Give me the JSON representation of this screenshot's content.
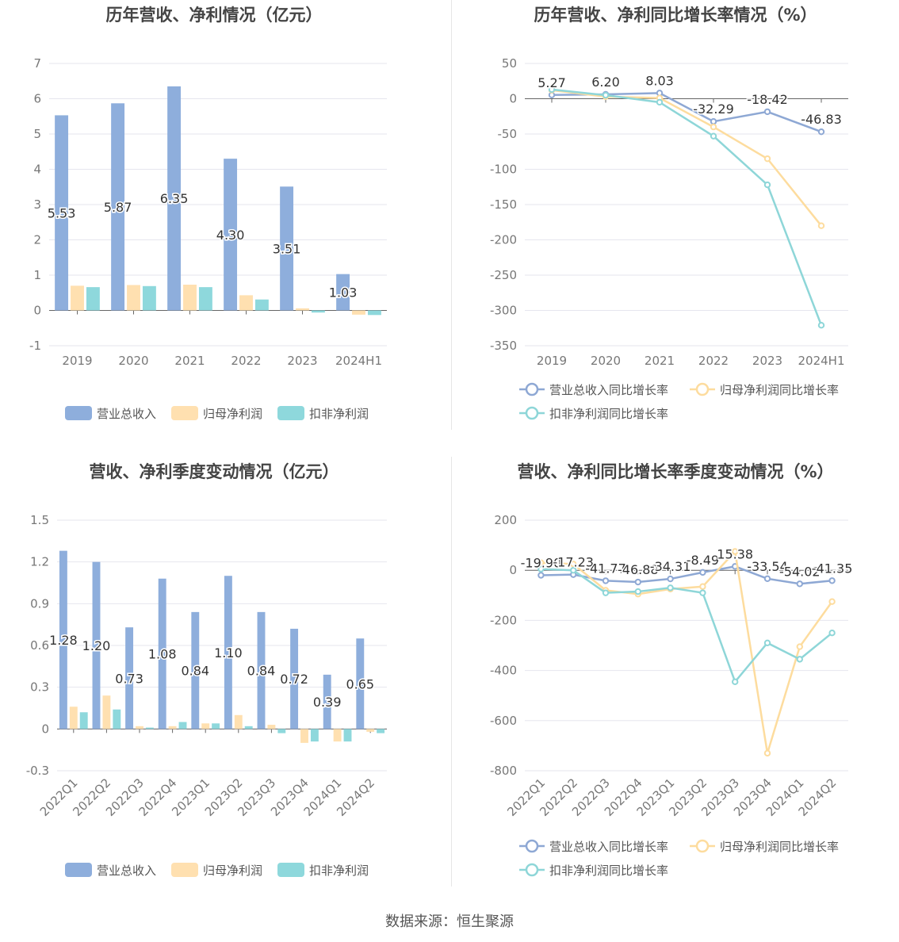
{
  "colors": {
    "revenue": "#8EAEDC",
    "net_profit": "#FFE0B0",
    "deducted_profit": "#8ED8DC",
    "revenue_line": "#8EA8D4",
    "net_line": "#FDDC9E",
    "deducted_line": "#8ED6D8",
    "grid": "#e6e6ee",
    "axis_text": "#777777",
    "title": "#444444"
  },
  "source": "数据来源：恒生聚源",
  "chart_data": [
    {
      "type": "bar",
      "title": "历年营收、净利情况（亿元）",
      "categories": [
        "2019",
        "2020",
        "2021",
        "2022",
        "2023",
        "2024H1"
      ],
      "ylim": [
        -1,
        7
      ],
      "yticks": [
        -1,
        0,
        1,
        2,
        3,
        4,
        5,
        6,
        7
      ],
      "ytick_labels": [
        "-1",
        "0",
        "1",
        "2",
        "3",
        "4",
        "5",
        "6",
        "7"
      ],
      "series": [
        {
          "name": "营业总收入",
          "values": [
            5.53,
            5.87,
            6.35,
            4.3,
            3.51,
            1.03
          ],
          "labels": [
            "5.53",
            "5.87",
            "6.35",
            "4.30",
            "3.51",
            "1.03"
          ]
        },
        {
          "name": "归母净利润",
          "values": [
            0.7,
            0.72,
            0.73,
            0.43,
            0.06,
            -0.12
          ]
        },
        {
          "name": "扣非净利润",
          "values": [
            0.66,
            0.69,
            0.66,
            0.31,
            -0.06,
            -0.13
          ]
        }
      ],
      "legend_position": "bottom"
    },
    {
      "type": "line",
      "title": "历年营收、净利同比增长率情况（%）",
      "categories": [
        "2019",
        "2020",
        "2021",
        "2022",
        "2023",
        "2024H1"
      ],
      "ylim": [
        -350,
        50
      ],
      "yticks": [
        -350,
        -300,
        -250,
        -200,
        -150,
        -100,
        -50,
        0,
        50
      ],
      "ytick_labels": [
        "-350",
        "-300",
        "-250",
        "-200",
        "-150",
        "-100",
        "-50",
        "0",
        "50"
      ],
      "series": [
        {
          "name": "营业总收入同比增长率",
          "values": [
            5.27,
            6.2,
            8.03,
            -32.29,
            -18.42,
            -46.83
          ],
          "labels": [
            "5.27",
            "6.20",
            "8.03",
            "-32.29",
            "-18.42",
            "-46.83"
          ]
        },
        {
          "name": "归母净利润同比增长率",
          "values": [
            12,
            3,
            1,
            -40,
            -85,
            -180
          ]
        },
        {
          "name": "扣非净利润同比增长率",
          "values": [
            13,
            5,
            -5,
            -53,
            -122,
            -321
          ]
        }
      ],
      "legend_position": "bottom"
    },
    {
      "type": "bar",
      "title": "营收、净利季度变动情况（亿元）",
      "categories": [
        "2022Q1",
        "2022Q2",
        "2022Q3",
        "2022Q4",
        "2023Q1",
        "2023Q2",
        "2023Q3",
        "2023Q4",
        "2024Q1",
        "2024Q2"
      ],
      "ylim": [
        -0.3,
        1.5
      ],
      "yticks": [
        -0.3,
        0,
        0.3,
        0.6,
        0.9,
        1.2,
        1.5
      ],
      "ytick_labels": [
        "-0.3",
        "0",
        "0.3",
        "0.6",
        "0.9",
        "1.2",
        "1.5"
      ],
      "series": [
        {
          "name": "营业总收入",
          "values": [
            1.28,
            1.2,
            0.73,
            1.08,
            0.84,
            1.1,
            0.84,
            0.72,
            0.39,
            0.65
          ],
          "labels": [
            "1.28",
            "1.20",
            "0.73",
            "1.08",
            "0.84",
            "1.10",
            "0.84",
            "0.72",
            "0.39",
            "0.65"
          ]
        },
        {
          "name": "归母净利润",
          "values": [
            0.16,
            0.24,
            0.02,
            0.02,
            0.04,
            0.1,
            0.03,
            -0.1,
            -0.09,
            -0.02
          ]
        },
        {
          "name": "扣非净利润",
          "values": [
            0.12,
            0.14,
            0.01,
            0.05,
            0.04,
            0.02,
            -0.03,
            -0.09,
            -0.09,
            -0.03
          ]
        }
      ],
      "legend_position": "bottom"
    },
    {
      "type": "line",
      "title": "营收、净利同比增长率季度变动情况（%）",
      "categories": [
        "2022Q1",
        "2022Q2",
        "2022Q3",
        "2022Q4",
        "2023Q1",
        "2023Q2",
        "2023Q3",
        "2023Q4",
        "2024Q1",
        "2024Q2"
      ],
      "ylim": [
        -800,
        200
      ],
      "yticks": [
        -800,
        -600,
        -400,
        -200,
        0,
        200
      ],
      "ytick_labels": [
        "-800",
        "-600",
        "-400",
        "-200",
        "0",
        "200"
      ],
      "series": [
        {
          "name": "营业总收入同比增长率",
          "values": [
            -19.9,
            -17.23,
            -41.77,
            -46.88,
            -34.31,
            -8.49,
            15.38,
            -33.54,
            -54.02,
            -41.35
          ],
          "labels": [
            "-19.90",
            "-17.23",
            "-41.77",
            "-46.88",
            "-34.31",
            "-8.49",
            "15.38",
            "-33.54",
            "-54.02",
            "-41.35"
          ]
        },
        {
          "name": "归母净利润同比增长率",
          "values": [
            30,
            25,
            -80,
            -95,
            -75,
            -65,
            75,
            -730,
            -305,
            -125
          ]
        },
        {
          "name": "扣非净利润同比增长率",
          "values": [
            5,
            0,
            -90,
            -85,
            -70,
            -90,
            -445,
            -290,
            -355,
            -250
          ]
        }
      ],
      "legend_position": "bottom"
    }
  ]
}
